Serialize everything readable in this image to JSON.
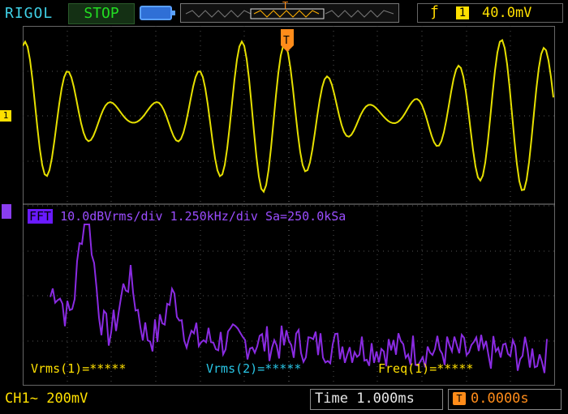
{
  "header": {
    "brand": "RIGOL",
    "run_state": "STOP",
    "trigger_marker": "T",
    "trigger_edge_symbol": "ƒ",
    "trigger_channel": "1",
    "trigger_level": "40.0mV"
  },
  "channel_marker": "1",
  "fft": {
    "tag": "FFT",
    "vertical_scale": "10.0dBVrms/div",
    "horizontal_scale": "1.250kHz/div",
    "sample_rate": "Sa=250.0kSa"
  },
  "measurements": {
    "vrms1": "Vrms(1)=*****",
    "vrms2": "Vrms(2)=*****",
    "freq1": "Freq(1)=*****"
  },
  "footer": {
    "channel_label": "CH1~",
    "channel_scale": "200mV",
    "timebase_label": "Time",
    "timebase_value": "1.000ms",
    "trigger_offset_icon": "T",
    "trigger_offset": "0.0000s"
  },
  "colors": {
    "ch1": "#ffe000",
    "math": "#9b4dff",
    "trigger": "#ff8c1a",
    "run_state": "#22dd22",
    "brand": "#3fd0e6"
  },
  "icons": {
    "battery": "battery-icon",
    "trigger_edge": "rising-edge-icon"
  }
}
